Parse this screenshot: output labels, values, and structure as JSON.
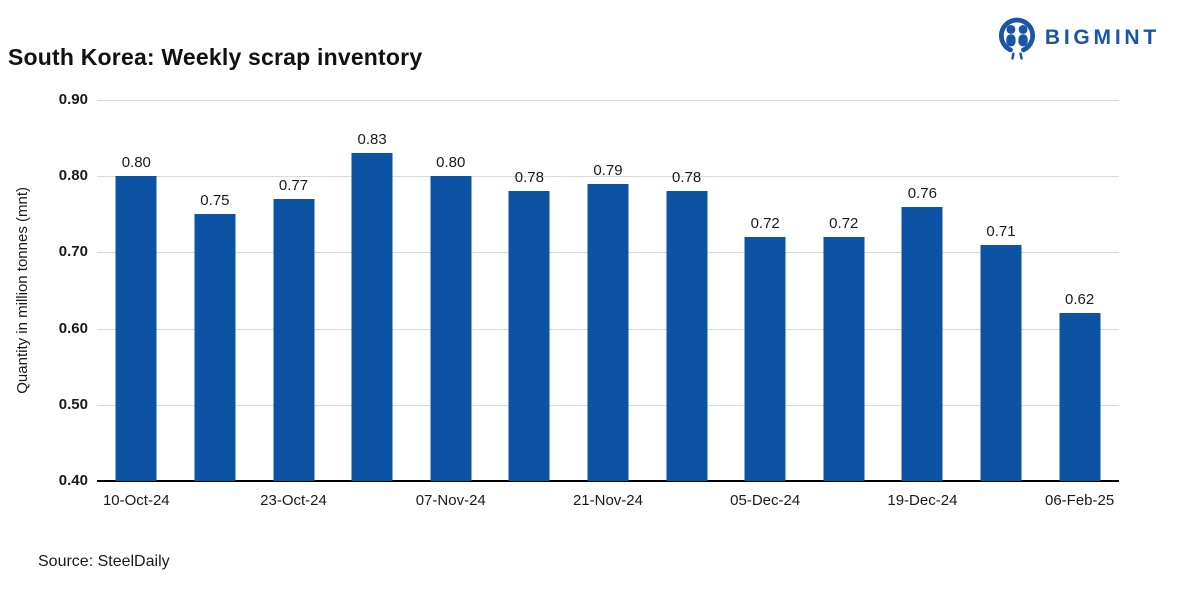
{
  "header": {
    "title": "South Korea: Weekly scrap inventory",
    "brand": "BIGMINT",
    "brand_color": "#1b55a7"
  },
  "chart_data": {
    "type": "bar",
    "title": "South Korea: Weekly scrap inventory",
    "ylabel": "Quantity in million tonnes (mnt)",
    "xlabel": "",
    "ylim": [
      0.4,
      0.9
    ],
    "yticks": [
      0.9,
      0.8,
      0.7,
      0.6,
      0.5,
      0.4
    ],
    "ytick_labels": [
      "0.90",
      "0.80",
      "0.70",
      "0.60",
      "0.50",
      "0.40"
    ],
    "grid": true,
    "legend": false,
    "bar_color": "#0c53a4",
    "categories": [
      "10-Oct-24",
      "",
      "23-Oct-24",
      "",
      "07-Nov-24",
      "",
      "21-Nov-24",
      "",
      "05-Dec-24",
      "",
      "19-Dec-24",
      "",
      "06-Feb-25"
    ],
    "values": [
      0.8,
      0.75,
      0.77,
      0.83,
      0.8,
      0.78,
      0.79,
      0.78,
      0.72,
      0.72,
      0.76,
      0.71,
      0.62
    ],
    "value_labels": [
      "0.80",
      "0.75",
      "0.77",
      "0.83",
      "0.80",
      "0.78",
      "0.79",
      "0.78",
      "0.72",
      "0.72",
      "0.76",
      "0.71",
      "0.62"
    ]
  },
  "footer": {
    "source": "Source: SteelDaily"
  }
}
